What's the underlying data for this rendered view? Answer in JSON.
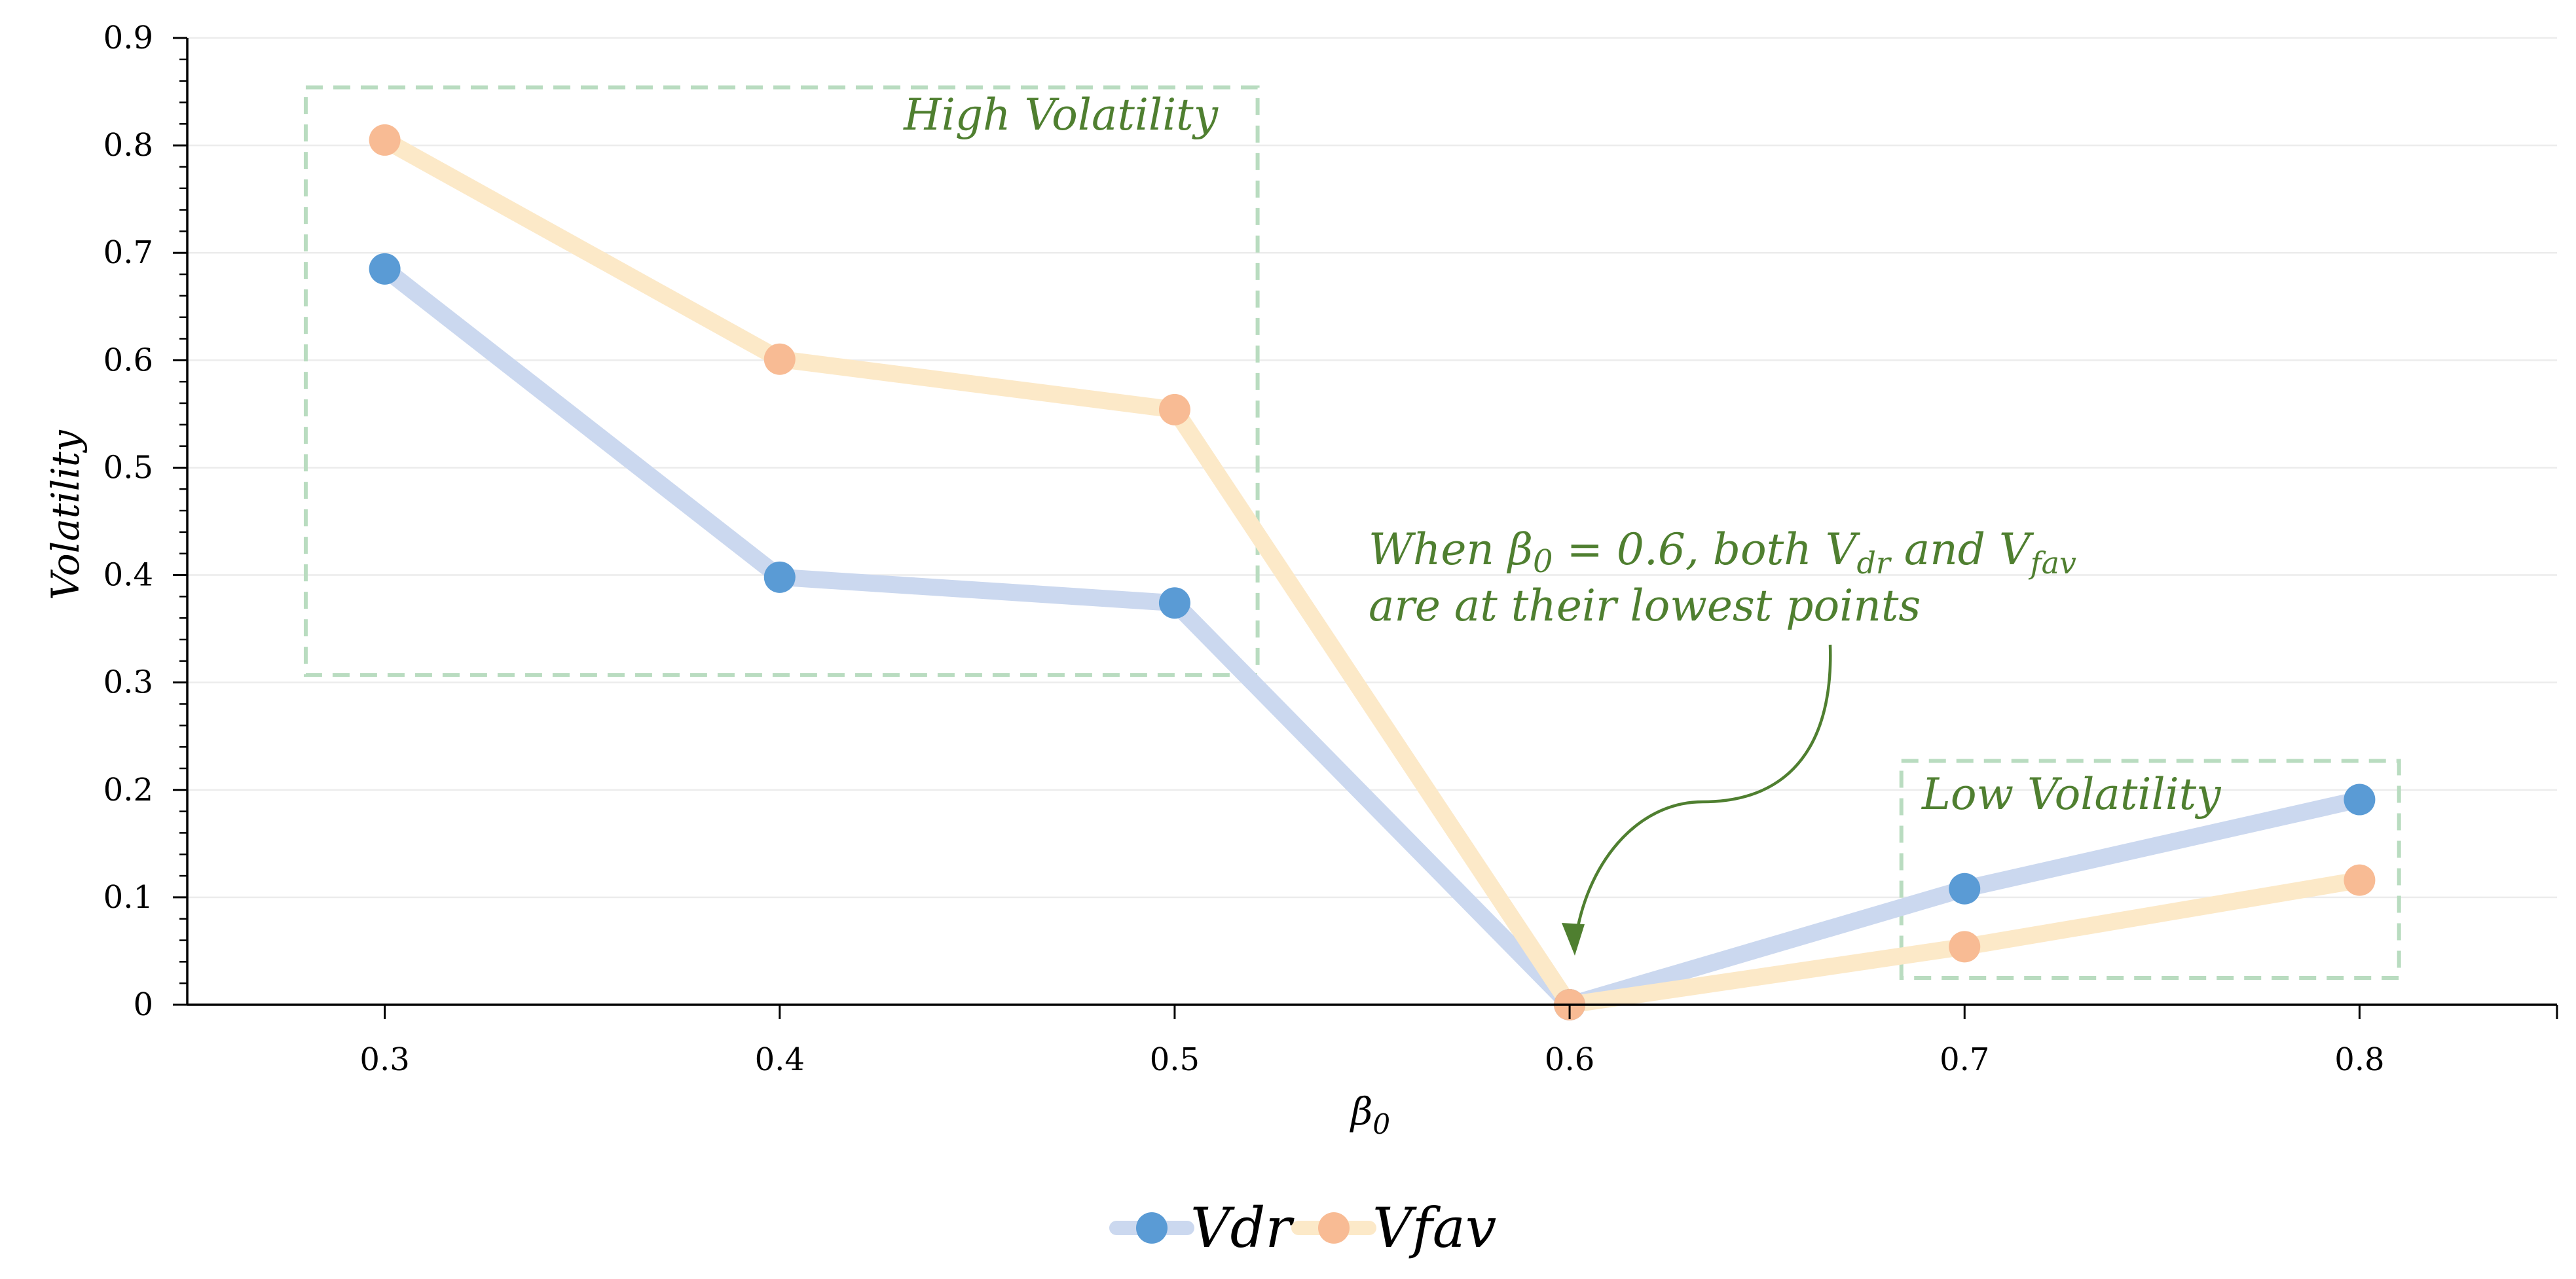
{
  "chart_data": {
    "type": "line",
    "title": "",
    "xlabel": "β",
    "xlabel_subscript": "0",
    "ylabel": "Volatility",
    "categories": [
      "0.3",
      "0.4",
      "0.5",
      "0.6",
      "0.7",
      "0.8"
    ],
    "x": [
      0.3,
      0.4,
      0.5,
      0.6,
      0.7,
      0.8
    ],
    "xlim": [
      0.25,
      0.85
    ],
    "ylim": [
      0,
      0.9
    ],
    "yticks": [
      "0",
      "0.1",
      "0.2",
      "0.3",
      "0.4",
      "0.5",
      "0.6",
      "0.7",
      "0.8",
      "0.9"
    ],
    "grid": "horizontal",
    "legend_position": "bottom-center",
    "series": [
      {
        "name": "Vdr",
        "values": [
          0.685,
          0.398,
          0.374,
          0.0,
          0.108,
          0.191
        ],
        "line_color": "#cbd8ef",
        "marker_color": "#5a9bd5"
      },
      {
        "name": "Vfav",
        "values": [
          0.805,
          0.601,
          0.554,
          0.0,
          0.054,
          0.116
        ],
        "line_color": "#fce9c8",
        "marker_color": "#f8bb94"
      }
    ],
    "annotations": {
      "high_box_label": "High Volatility",
      "low_box_label": "Low Volatility",
      "callout_line1": {
        "p1": "When ",
        "beta": "β",
        "beta_sub": "0",
        "p2": " = 0.6, both V",
        "sub1": "dr",
        "p3": " and V",
        "sub2": "fav"
      },
      "callout_line2": "are at their lowest points",
      "box_color": "#b9dcc0",
      "text_color": "#4f7f30"
    }
  }
}
